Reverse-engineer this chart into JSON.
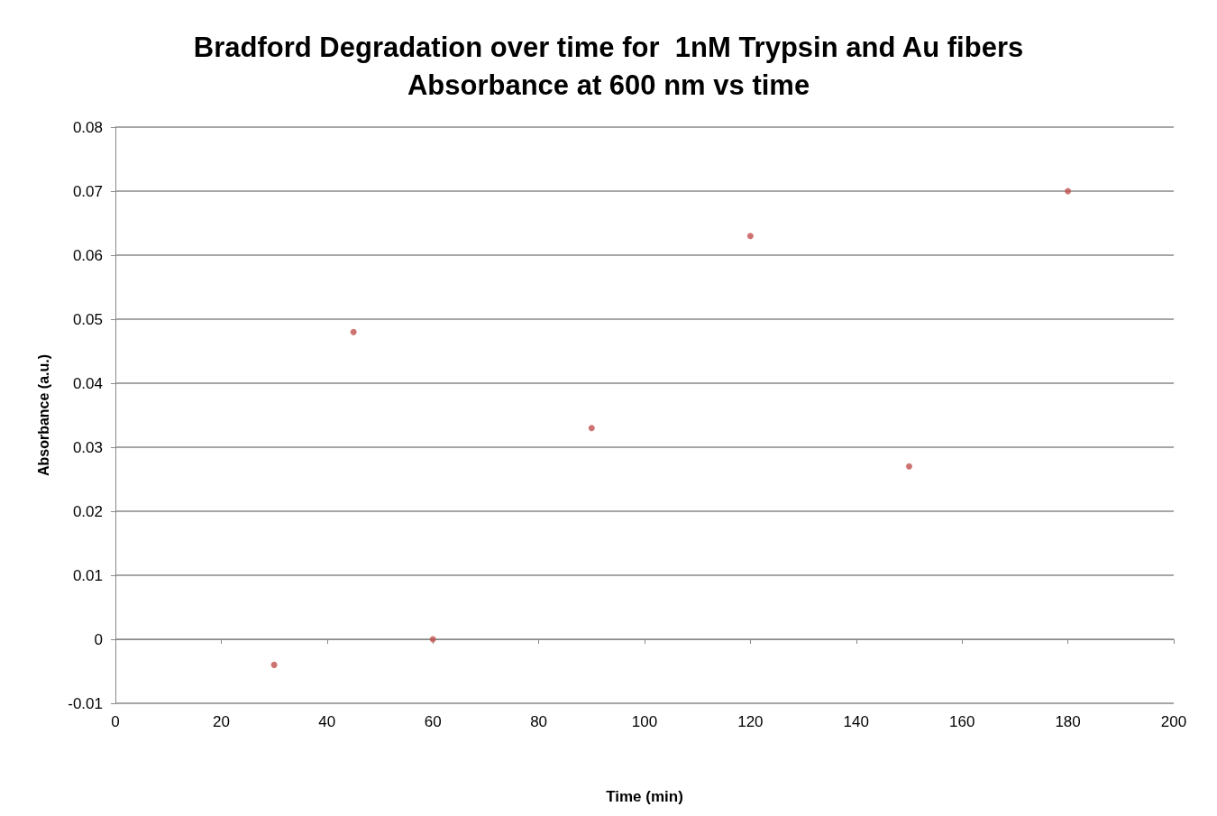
{
  "chart_data": {
    "type": "scatter",
    "title": "Bradford Degradation over time for  1nM Trypsin and Au fibers\nAbsorbance at 600 nm vs time",
    "xlabel": "Time (min)",
    "ylabel": "Absorbance (a.u.)",
    "x": [
      30,
      45,
      60,
      90,
      120,
      150,
      180
    ],
    "series": [
      {
        "color": "#c0504d",
        "values": [
          -0.004,
          0.048,
          0,
          0.033,
          0.063,
          0.027,
          0.07
        ]
      }
    ],
    "xlim": [
      0,
      200
    ],
    "xticks": [
      0,
      20,
      40,
      60,
      80,
      100,
      120,
      140,
      160,
      180,
      200
    ],
    "ylim": [
      -0.01,
      0.08
    ],
    "yticks": [
      -0.01,
      0,
      0.01,
      0.02,
      0.03,
      0.04,
      0.05,
      0.06,
      0.07,
      0.08
    ],
    "grid": "y",
    "marker": "circle"
  }
}
